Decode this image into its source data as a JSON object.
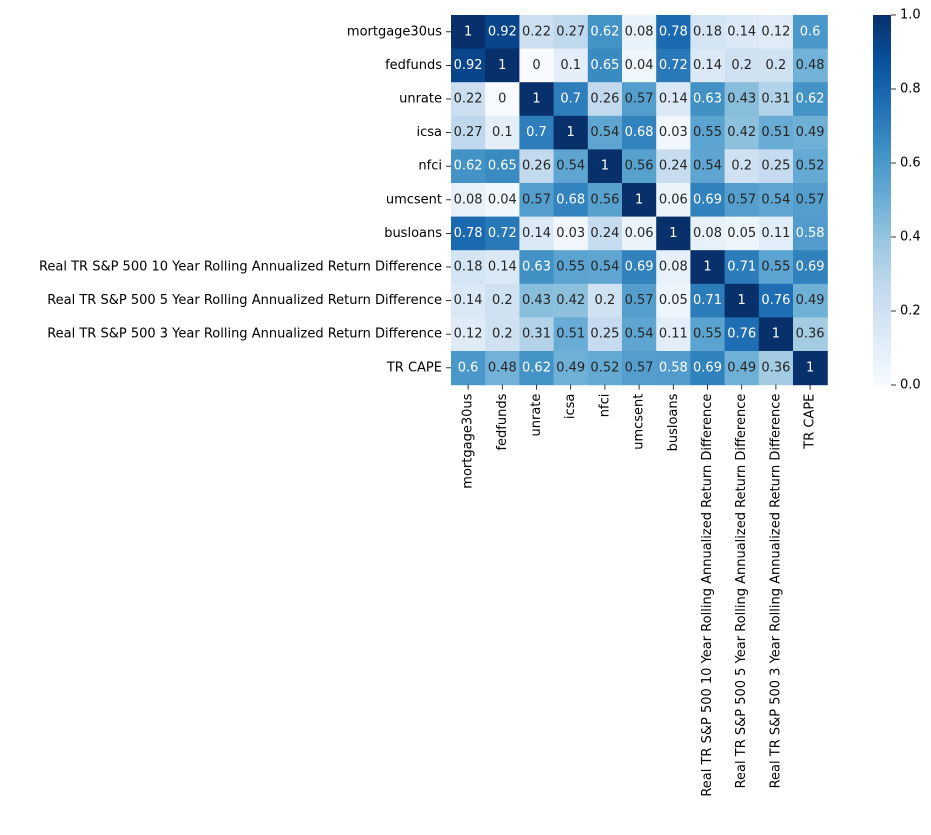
{
  "chart_data": {
    "type": "heatmap",
    "colormap": "Blues",
    "colors": [
      "#f7fbff",
      "#deebf7",
      "#c6dbef",
      "#9ecae1",
      "#6baed6",
      "#4292c6",
      "#2171b5",
      "#08519c",
      "#08306b"
    ],
    "row_labels": [
      "mortgage30us",
      "fedfunds",
      "unrate",
      "icsa",
      "nfci",
      "umcsent",
      "busloans",
      "Real TR S&P 500 10 Year Rolling Annualized Return Difference",
      "Real TR S&P 500 5 Year Rolling Annualized Return Difference",
      "Real TR S&P 500 3 Year Rolling Annualized Return Difference",
      "TR CAPE"
    ],
    "column_labels": [
      "mortgage30us",
      "fedfunds",
      "unrate",
      "icsa",
      "nfci",
      "umcsent",
      "busloans",
      "Real TR S&P 500 10 Year Rolling Annualized Return Difference",
      "Real TR S&P 500 5 Year Rolling Annualized Return Difference",
      "Real TR S&P 500 3 Year Rolling Annualized Return Difference",
      "TR CAPE"
    ],
    "values": [
      [
        1,
        0.92,
        0.22,
        0.27,
        0.62,
        0.08,
        0.78,
        0.18,
        0.14,
        0.12,
        0.6
      ],
      [
        0.92,
        1,
        0,
        0.1,
        0.65,
        0.04,
        0.72,
        0.14,
        0.2,
        0.2,
        0.48
      ],
      [
        0.22,
        0,
        1,
        0.7,
        0.26,
        0.57,
        0.14,
        0.63,
        0.43,
        0.31,
        0.62
      ],
      [
        0.27,
        0.1,
        0.7,
        1,
        0.54,
        0.68,
        0.03,
        0.55,
        0.42,
        0.51,
        0.49
      ],
      [
        0.62,
        0.65,
        0.26,
        0.54,
        1,
        0.56,
        0.24,
        0.54,
        0.2,
        0.25,
        0.52
      ],
      [
        0.08,
        0.04,
        0.57,
        0.68,
        0.56,
        1,
        0.06,
        0.69,
        0.57,
        0.54,
        0.57
      ],
      [
        0.78,
        0.72,
        0.14,
        0.03,
        0.24,
        0.06,
        1,
        0.08,
        0.05,
        0.11,
        0.58
      ],
      [
        0.18,
        0.14,
        0.63,
        0.55,
        0.54,
        0.69,
        0.08,
        1,
        0.71,
        0.55,
        0.69
      ],
      [
        0.14,
        0.2,
        0.43,
        0.42,
        0.2,
        0.57,
        0.05,
        0.71,
        1,
        0.76,
        0.49
      ],
      [
        0.12,
        0.2,
        0.31,
        0.51,
        0.25,
        0.54,
        0.11,
        0.55,
        0.76,
        1,
        0.36
      ],
      [
        0.6,
        0.48,
        0.62,
        0.49,
        0.52,
        0.57,
        0.58,
        0.69,
        0.49,
        0.36,
        1
      ]
    ],
    "vmin": 0,
    "vmax": 1,
    "colorbar_ticks": [
      0.0,
      0.2,
      0.4,
      0.6,
      0.8,
      1.0
    ],
    "colorbar_tick_labels": [
      "0.0",
      "0.2",
      "0.4",
      "0.6",
      "0.8",
      "1.0"
    ],
    "annotations": true,
    "colorbar": true
  }
}
